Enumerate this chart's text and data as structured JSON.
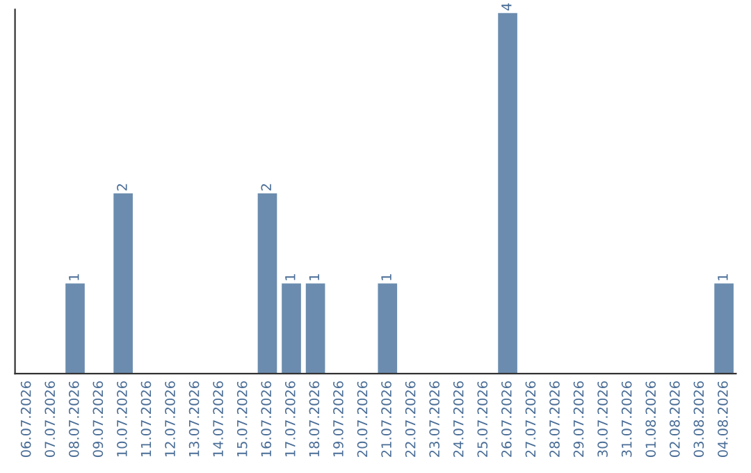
{
  "chart_data": {
    "type": "bar",
    "categories": [
      "06.07.2026",
      "07.07.2026",
      "08.07.2026",
      "09.07.2026",
      "10.07.2026",
      "11.07.2026",
      "12.07.2026",
      "13.07.2026",
      "14.07.2026",
      "15.07.2026",
      "16.07.2026",
      "17.07.2026",
      "18.07.2026",
      "19.07.2026",
      "20.07.2026",
      "21.07.2026",
      "22.07.2026",
      "23.07.2026",
      "24.07.2026",
      "25.07.2026",
      "26.07.2026",
      "27.07.2026",
      "28.07.2026",
      "29.07.2026",
      "30.07.2026",
      "31.07.2026",
      "01.08.2026",
      "02.08.2026",
      "03.08.2026",
      "04.08.2026"
    ],
    "values": [
      null,
      null,
      1,
      null,
      2,
      null,
      null,
      null,
      null,
      null,
      2,
      1,
      1,
      null,
      null,
      1,
      null,
      null,
      null,
      null,
      4,
      null,
      null,
      null,
      null,
      null,
      null,
      null,
      null,
      1
    ],
    "value_labels": [
      null,
      null,
      "1",
      null,
      "2",
      null,
      null,
      null,
      null,
      null,
      "2",
      "1",
      "1",
      null,
      null,
      "1",
      null,
      null,
      null,
      null,
      "4",
      null,
      null,
      null,
      null,
      null,
      null,
      null,
      null,
      "1"
    ],
    "color": "#6b8cae",
    "tick_labels": "x",
    "grid": false,
    "legend": false
  }
}
